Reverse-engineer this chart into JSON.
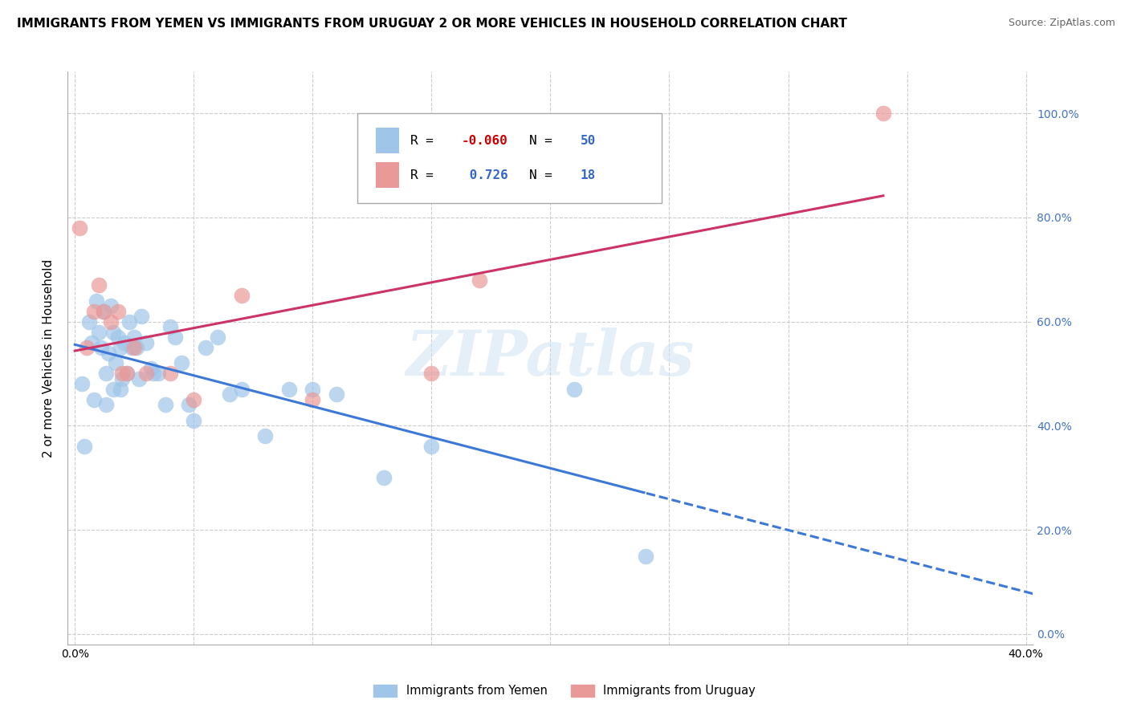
{
  "title": "IMMIGRANTS FROM YEMEN VS IMMIGRANTS FROM URUGUAY 2 OR MORE VEHICLES IN HOUSEHOLD CORRELATION CHART",
  "source": "Source: ZipAtlas.com",
  "ylabel": "2 or more Vehicles in Household",
  "xlim": [
    -0.003,
    0.403
  ],
  "ylim": [
    -0.02,
    1.08
  ],
  "ytick_positions": [
    0.0,
    0.2,
    0.4,
    0.6,
    0.8,
    1.0
  ],
  "ytick_labels_right": [
    "0.0%",
    "20.0%",
    "40.0%",
    "60.0%",
    "80.0%",
    "100.0%"
  ],
  "xtick_positions": [
    0.0,
    0.05,
    0.1,
    0.15,
    0.2,
    0.25,
    0.3,
    0.35,
    0.4
  ],
  "xtick_labels": [
    "0.0%",
    "",
    "",
    "",
    "",
    "",
    "",
    "",
    "40.0%"
  ],
  "yemen_color": "#9fc5e8",
  "yemen_line_color": "#3c78d8",
  "uruguay_color": "#ea9999",
  "uruguay_line_color": "#cc3366",
  "right_tick_color": "#4472c4",
  "yemen_R": -0.06,
  "yemen_N": 50,
  "uruguay_R": 0.726,
  "uruguay_N": 18,
  "yemen_scatter_x": [
    0.004,
    0.006,
    0.007,
    0.009,
    0.01,
    0.011,
    0.012,
    0.013,
    0.014,
    0.015,
    0.016,
    0.017,
    0.018,
    0.019,
    0.02,
    0.021,
    0.022,
    0.023,
    0.024,
    0.025,
    0.026,
    0.028,
    0.03,
    0.032,
    0.035,
    0.038,
    0.04,
    0.042,
    0.045,
    0.048,
    0.05,
    0.055,
    0.06,
    0.065,
    0.07,
    0.08,
    0.09,
    0.1,
    0.11,
    0.13,
    0.003,
    0.008,
    0.013,
    0.016,
    0.019,
    0.027,
    0.033,
    0.15,
    0.21,
    0.24
  ],
  "yemen_scatter_y": [
    0.36,
    0.6,
    0.56,
    0.64,
    0.58,
    0.55,
    0.62,
    0.5,
    0.54,
    0.63,
    0.58,
    0.52,
    0.57,
    0.55,
    0.49,
    0.56,
    0.5,
    0.6,
    0.55,
    0.57,
    0.55,
    0.61,
    0.56,
    0.51,
    0.5,
    0.44,
    0.59,
    0.57,
    0.52,
    0.44,
    0.41,
    0.55,
    0.57,
    0.46,
    0.47,
    0.38,
    0.47,
    0.47,
    0.46,
    0.3,
    0.48,
    0.45,
    0.44,
    0.47,
    0.47,
    0.49,
    0.5,
    0.36,
    0.47,
    0.15
  ],
  "uruguay_scatter_x": [
    0.002,
    0.005,
    0.008,
    0.01,
    0.012,
    0.015,
    0.018,
    0.02,
    0.022,
    0.025,
    0.03,
    0.04,
    0.05,
    0.07,
    0.1,
    0.15,
    0.17,
    0.34
  ],
  "uruguay_scatter_y": [
    0.78,
    0.55,
    0.62,
    0.67,
    0.62,
    0.6,
    0.62,
    0.5,
    0.5,
    0.55,
    0.5,
    0.5,
    0.45,
    0.65,
    0.45,
    0.5,
    0.68,
    1.0
  ],
  "watermark": "ZIPatlas"
}
